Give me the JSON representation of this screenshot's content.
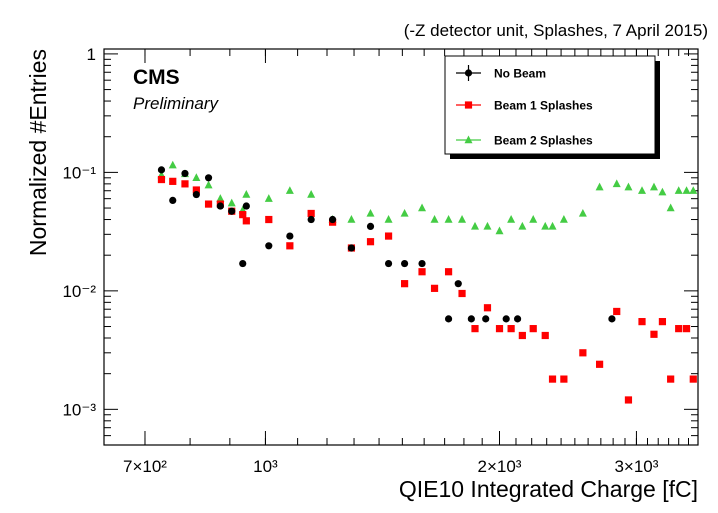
{
  "chart_data": {
    "type": "scatter",
    "title": "",
    "top_note": "(-Z detector unit, Splashes, 7 April 2015)",
    "experiment_label": "CMS",
    "status_label": "Preliminary",
    "xlabel": "QIE10 Integrated Charge [fC]",
    "ylabel": "Normalized #Entries",
    "xscale": "log",
    "yscale": "log",
    "xlim": [
      620,
      3600
    ],
    "ylim": [
      0.0005,
      1.1
    ],
    "x_ticks": [
      {
        "value": 700,
        "label": "7×10²"
      },
      {
        "value": 1000,
        "label": "10³"
      },
      {
        "value": 2000,
        "label": "2×10³"
      },
      {
        "value": 3000,
        "label": "3×10³"
      }
    ],
    "y_ticks": [
      {
        "value": 1,
        "label": "1"
      },
      {
        "value": 0.1,
        "label": "10⁻¹"
      },
      {
        "value": 0.01,
        "label": "10⁻²"
      },
      {
        "value": 0.001,
        "label": "10⁻³"
      }
    ],
    "legend_position": "top-right",
    "series": [
      {
        "name": "No Beam",
        "color": "#000000",
        "marker": "circle",
        "points": [
          [
            735,
            0.105
          ],
          [
            760,
            0.058
          ],
          [
            788,
            0.098
          ],
          [
            815,
            0.065
          ],
          [
            845,
            0.09
          ],
          [
            875,
            0.052
          ],
          [
            905,
            0.047
          ],
          [
            935,
            0.017
          ],
          [
            945,
            0.052
          ],
          [
            1010,
            0.024
          ],
          [
            1075,
            0.029
          ],
          [
            1145,
            0.04
          ],
          [
            1220,
            0.04
          ],
          [
            1290,
            0.023
          ],
          [
            1365,
            0.035
          ],
          [
            1440,
            0.017
          ],
          [
            1510,
            0.017
          ],
          [
            1590,
            0.017
          ],
          [
            1720,
            0.0058
          ],
          [
            1770,
            0.0115
          ],
          [
            1840,
            0.0058
          ],
          [
            1920,
            0.0058
          ],
          [
            2040,
            0.0058
          ],
          [
            2110,
            0.0058
          ],
          [
            2790,
            0.0058
          ]
        ]
      },
      {
        "name": "Beam 1 Splashes",
        "color": "#ff0000",
        "marker": "square",
        "points": [
          [
            735,
            0.087
          ],
          [
            760,
            0.084
          ],
          [
            788,
            0.08
          ],
          [
            815,
            0.071
          ],
          [
            845,
            0.054
          ],
          [
            875,
            0.054
          ],
          [
            905,
            0.047
          ],
          [
            935,
            0.044
          ],
          [
            945,
            0.039
          ],
          [
            1010,
            0.04
          ],
          [
            1075,
            0.024
          ],
          [
            1145,
            0.045
          ],
          [
            1220,
            0.038
          ],
          [
            1290,
            0.023
          ],
          [
            1365,
            0.026
          ],
          [
            1440,
            0.029
          ],
          [
            1510,
            0.0115
          ],
          [
            1590,
            0.0145
          ],
          [
            1650,
            0.0105
          ],
          [
            1720,
            0.0145
          ],
          [
            1790,
            0.0095
          ],
          [
            1860,
            0.0048
          ],
          [
            1930,
            0.0072
          ],
          [
            2000,
            0.0048
          ],
          [
            2070,
            0.0048
          ],
          [
            2140,
            0.0042
          ],
          [
            2210,
            0.0048
          ],
          [
            2290,
            0.0042
          ],
          [
            2340,
            0.0018
          ],
          [
            2420,
            0.0018
          ],
          [
            2560,
            0.003
          ],
          [
            2690,
            0.0024
          ],
          [
            2830,
            0.0067
          ],
          [
            2930,
            0.0012
          ],
          [
            3050,
            0.0055
          ],
          [
            3160,
            0.0043
          ],
          [
            3240,
            0.0055
          ],
          [
            3320,
            0.0018
          ],
          [
            3400,
            0.0048
          ],
          [
            3480,
            0.0048
          ],
          [
            3550,
            0.0018
          ]
        ]
      },
      {
        "name": "Beam 2 Splashes",
        "color": "#44cc44",
        "marker": "triangle",
        "points": [
          [
            735,
            0.095
          ],
          [
            760,
            0.115
          ],
          [
            788,
            0.097
          ],
          [
            815,
            0.09
          ],
          [
            845,
            0.078
          ],
          [
            875,
            0.06
          ],
          [
            905,
            0.055
          ],
          [
            935,
            0.048
          ],
          [
            945,
            0.065
          ],
          [
            1010,
            0.06
          ],
          [
            1075,
            0.07
          ],
          [
            1145,
            0.065
          ],
          [
            1220,
            0.04
          ],
          [
            1290,
            0.04
          ],
          [
            1365,
            0.045
          ],
          [
            1440,
            0.04
          ],
          [
            1510,
            0.045
          ],
          [
            1590,
            0.05
          ],
          [
            1650,
            0.04
          ],
          [
            1720,
            0.04
          ],
          [
            1790,
            0.04
          ],
          [
            1860,
            0.035
          ],
          [
            1930,
            0.035
          ],
          [
            2000,
            0.032
          ],
          [
            2070,
            0.04
          ],
          [
            2140,
            0.035
          ],
          [
            2210,
            0.04
          ],
          [
            2290,
            0.035
          ],
          [
            2340,
            0.035
          ],
          [
            2420,
            0.04
          ],
          [
            2560,
            0.045
          ],
          [
            2690,
            0.075
          ],
          [
            2830,
            0.08
          ],
          [
            2930,
            0.075
          ],
          [
            3050,
            0.07
          ],
          [
            3160,
            0.075
          ],
          [
            3240,
            0.068
          ],
          [
            3320,
            0.05
          ],
          [
            3400,
            0.07
          ],
          [
            3480,
            0.07
          ],
          [
            3550,
            0.07
          ]
        ]
      }
    ]
  }
}
